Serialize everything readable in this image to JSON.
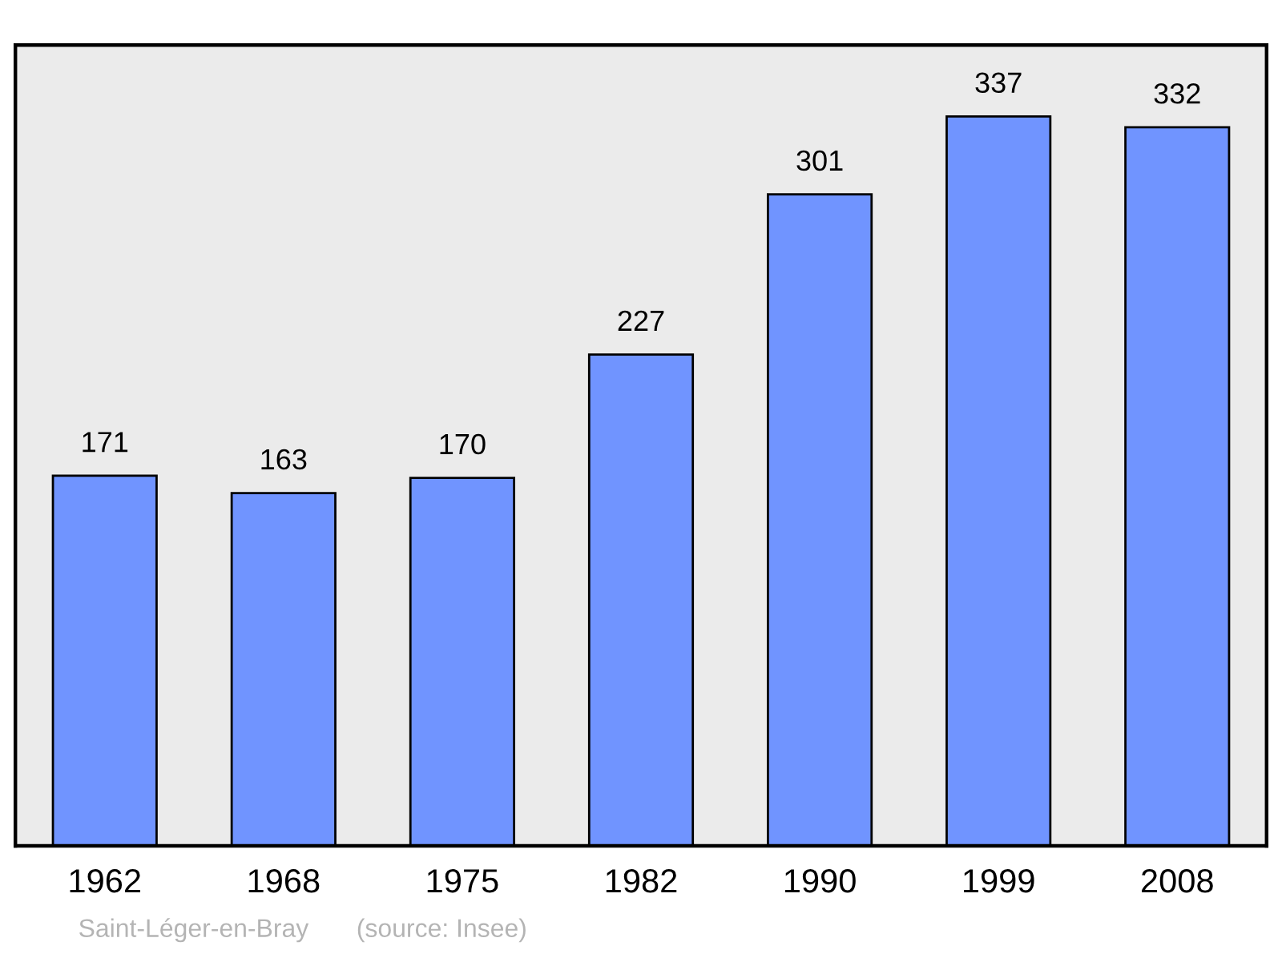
{
  "chart_data": {
    "type": "bar",
    "categories": [
      "1962",
      "1968",
      "1975",
      "1982",
      "1990",
      "1999",
      "2008"
    ],
    "values": [
      171,
      163,
      170,
      227,
      301,
      337,
      332
    ],
    "color": "#7094ff",
    "ylim": [
      0,
      370
    ],
    "data_labels": true,
    "grid": false,
    "tick_labels": "x",
    "annotations": [
      "Saint-Léger-en-Bray",
      "(source: Insee)"
    ]
  }
}
